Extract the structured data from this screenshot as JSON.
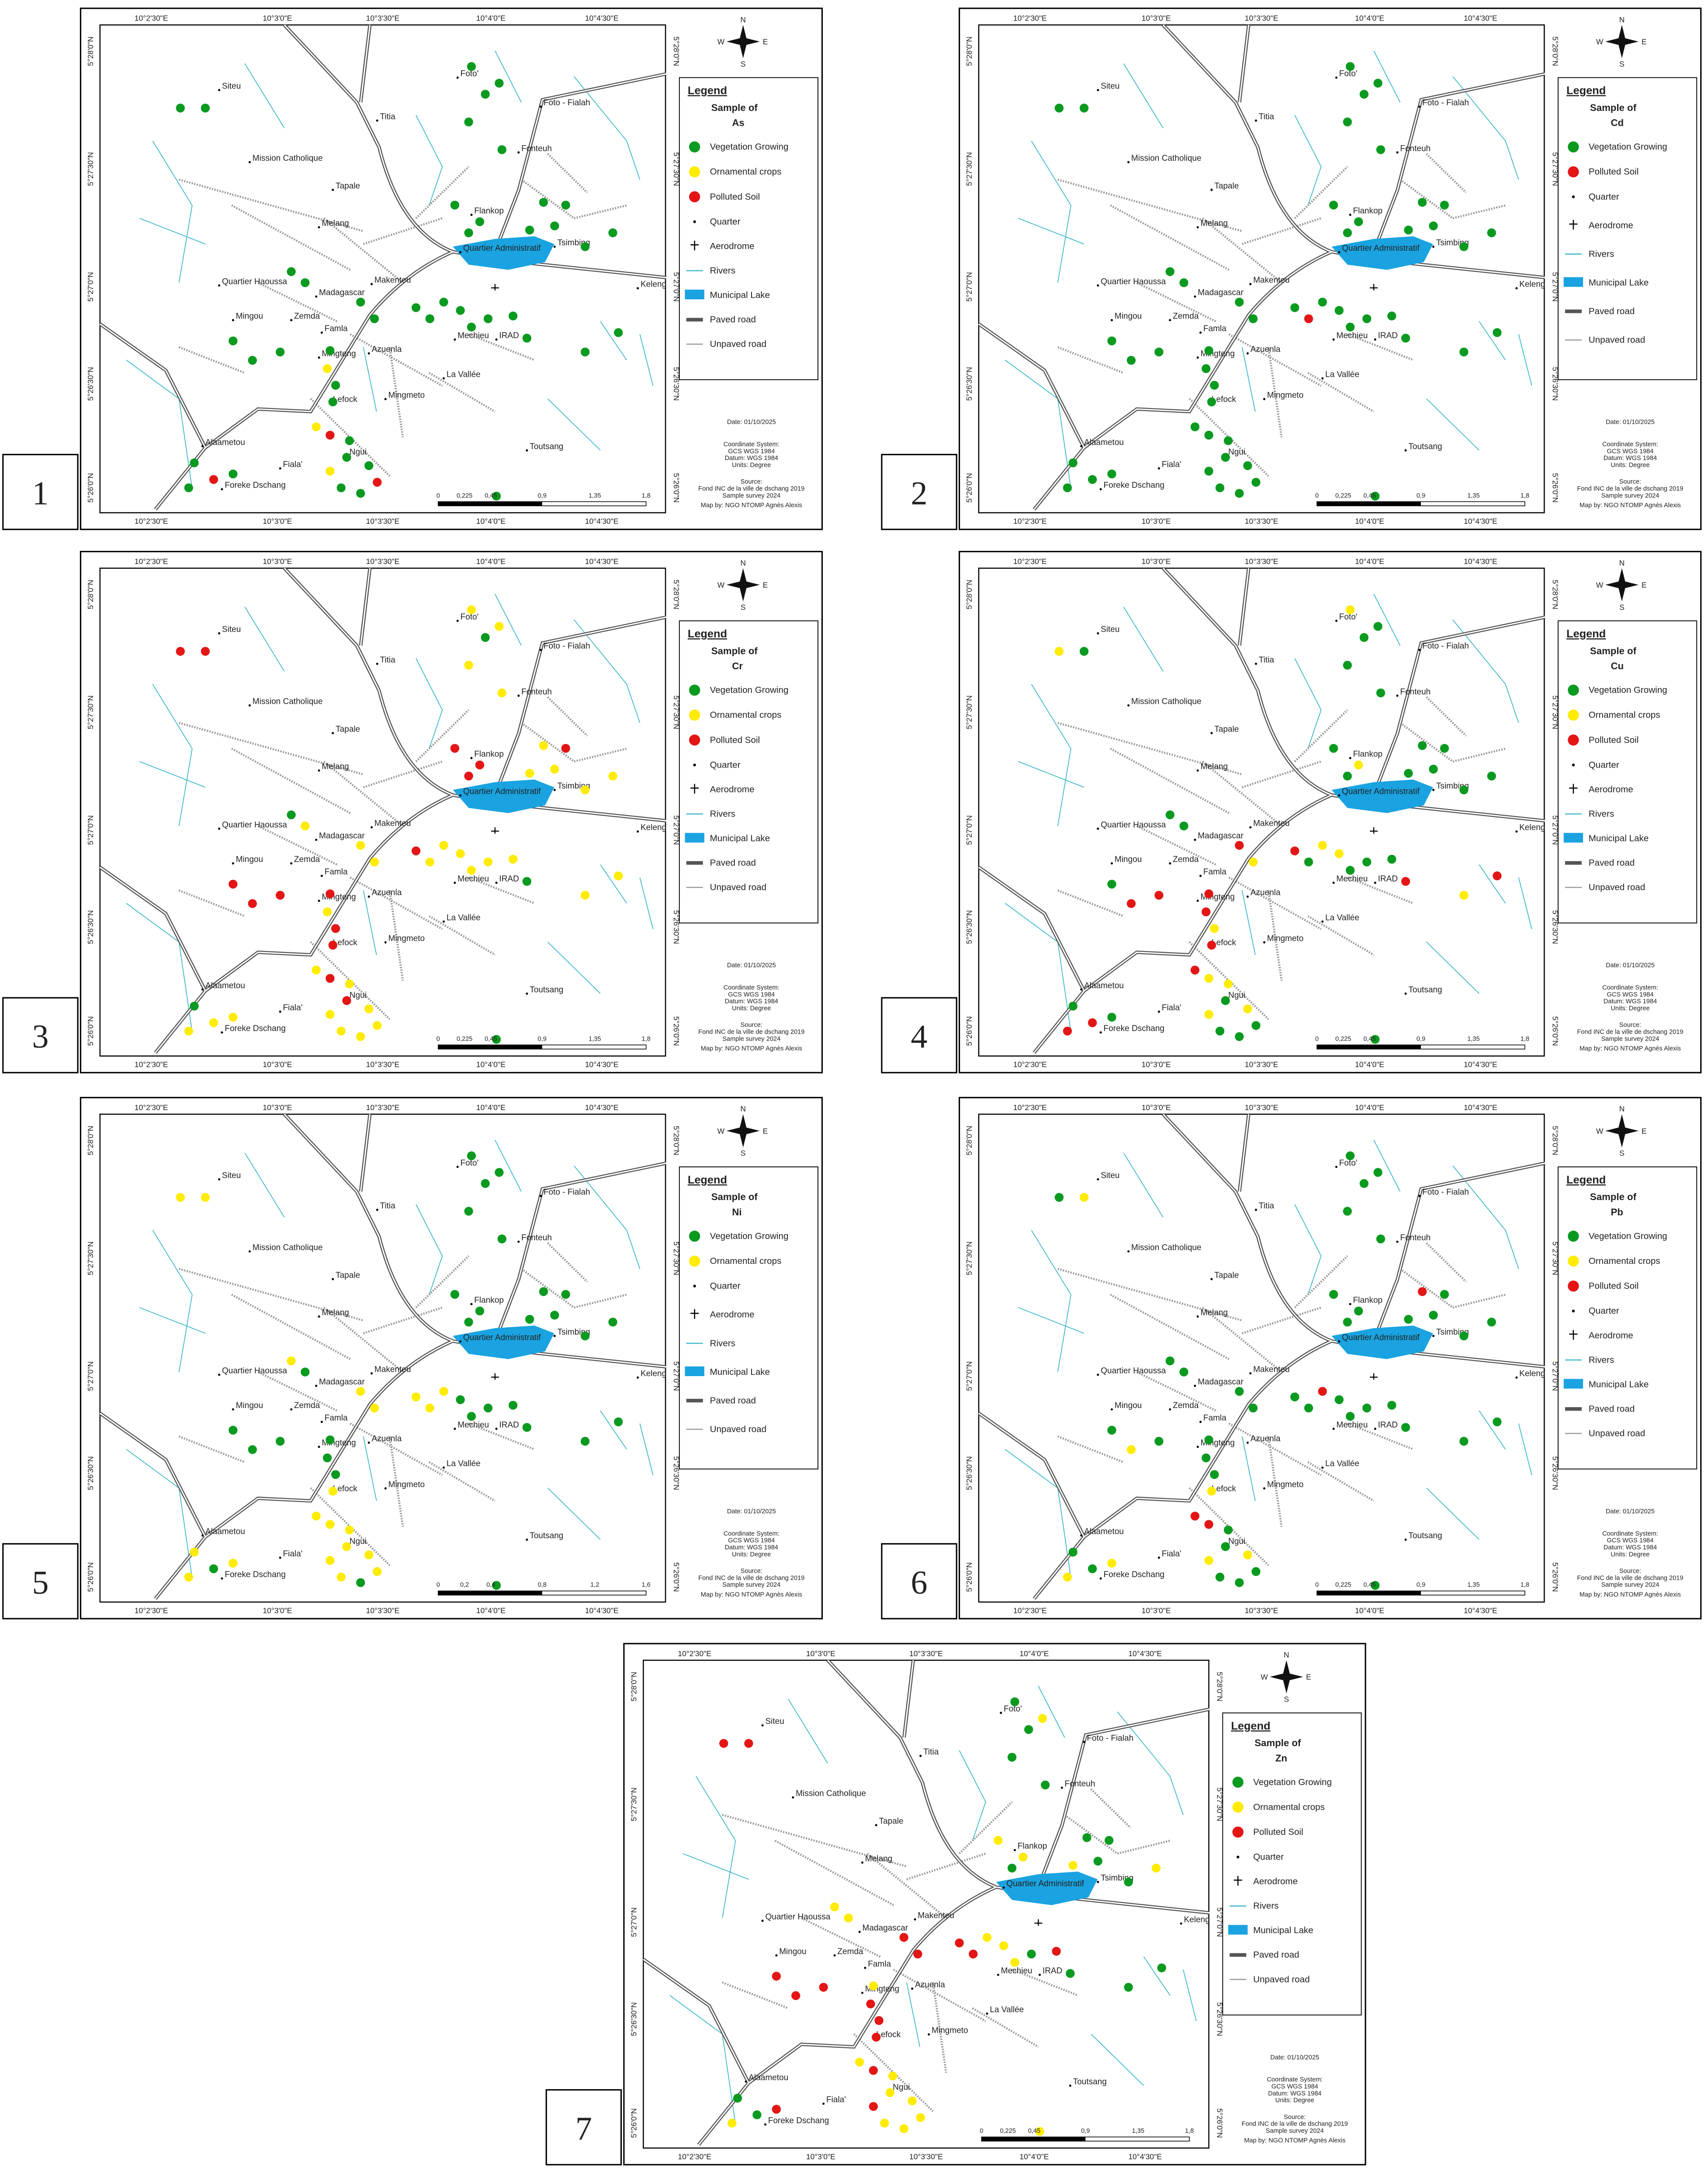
{
  "shared": {
    "x_labels": [
      "10°2'30\"E",
      "10°3'0\"E",
      "10°3'30\"E",
      "10°4'0\"E",
      "10°4'30\"E"
    ],
    "y_labels": [
      "5°28'0\"N",
      "5°27'30\"N",
      "5°27'0\"N",
      "5°26'30\"N",
      "5°26'0\"N"
    ],
    "compass": [
      "N",
      "S",
      "E",
      "W"
    ],
    "places": [
      "Siteu",
      "Foto'",
      "Foto - Fialah",
      "Titia",
      "Fonteuh",
      "Mission Catholique",
      "Tapale",
      "Flankop",
      "Melang",
      "Tsimbing",
      "Quartier Administratif",
      "Quartier Haoussa",
      "Makenteu",
      "Keleng",
      "Madagascar",
      "Mingou",
      "Zemda",
      "Famla",
      "Mechieu",
      "IRAD",
      "Mingteng",
      "Azuenla",
      "La Vallée",
      "Mingmeto",
      "Lefock",
      "Toutsang",
      "Alaametou",
      "Fiala'",
      "Ngui",
      "Foreke Dschang"
    ],
    "legend_title": "Legend",
    "sample_of": "Sample of",
    "sample_types": [
      "Vegetation Growing",
      "Ornamental crops",
      "Polluted Soil"
    ],
    "other_legend": [
      "Quarter",
      "Aerodrome",
      "Rivers",
      "Municipal Lake",
      "Paved road",
      "Unpaved road"
    ],
    "notes": [
      "Date: 01/10/2025",
      "Coordinate System:",
      "GCS WGS 1984",
      "Datum: WGS 1984",
      "Units: Degree",
      "Source:",
      "Fond INC de la ville de dschang 2019",
      "Sample survey 2024",
      "Map by: NGO NTOMP Agnès Alexis"
    ]
  },
  "panels": [
    {
      "number": "1",
      "element": "As",
      "sample_types": [
        0,
        1,
        2
      ],
      "scale_labels": [
        "0",
        "0,225",
        "0,45",
        "0,9",
        "1,35",
        "1,8"
      ]
    },
    {
      "number": "2",
      "element": "Cd",
      "sample_types": [
        0,
        2
      ],
      "scale_labels": [
        "0",
        "0,225",
        "0,45",
        "0,9",
        "1,35",
        "1,8"
      ]
    },
    {
      "number": "3",
      "element": "Cr",
      "sample_types": [
        0,
        1,
        2
      ],
      "scale_labels": [
        "0",
        "0,225",
        "0,45",
        "0,9",
        "1,35",
        "1,8"
      ]
    },
    {
      "number": "4",
      "element": "Cu",
      "sample_types": [
        0,
        1,
        2
      ],
      "scale_labels": [
        "0",
        "0,225",
        "0,45",
        "0,9",
        "1,35",
        "1,8"
      ]
    },
    {
      "number": "5",
      "element": "Ni",
      "sample_types": [
        0,
        1
      ],
      "scale_labels": [
        "0",
        "0,2",
        "0,4",
        "0,8",
        "1,2",
        "1,6"
      ]
    },
    {
      "number": "6",
      "element": "Pb",
      "sample_types": [
        0,
        1,
        2
      ],
      "scale_labels": [
        "0",
        "0,225",
        "0,45",
        "0,9",
        "1,35",
        "1,8"
      ]
    },
    {
      "number": "7",
      "element": "Zn",
      "sample_types": [
        0,
        1,
        2
      ],
      "scale_labels": [
        "0",
        "0,225",
        "0,45",
        "0,9",
        "1,35",
        "1,8"
      ]
    }
  ]
}
